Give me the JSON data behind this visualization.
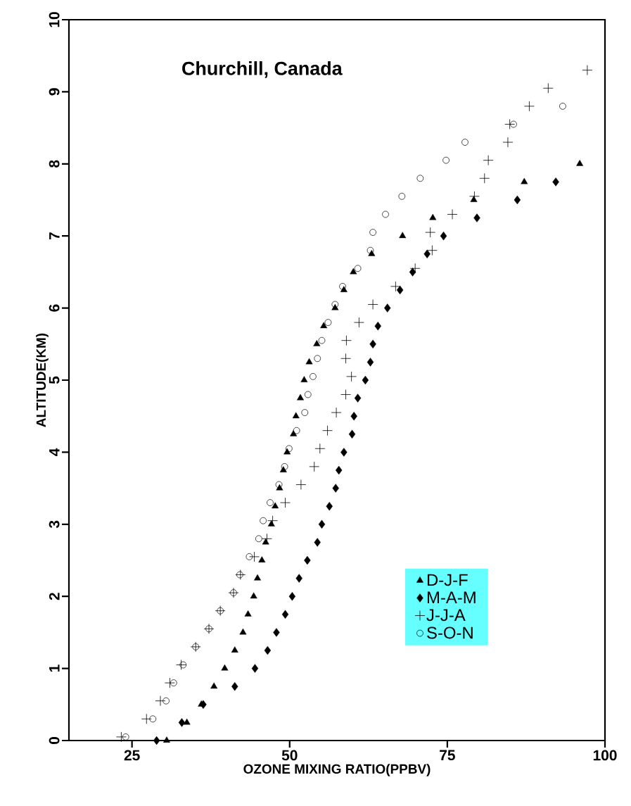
{
  "chart_data": {
    "type": "scatter",
    "title": "Churchill, Canada",
    "xlabel": "OZONE MIXING RATIO(PPBV)",
    "ylabel": "ALTITUDE(KM)",
    "xlim": [
      15,
      100
    ],
    "ylim": [
      0,
      10
    ],
    "xticks": [
      25,
      50,
      75,
      100
    ],
    "yticks": [
      0,
      1,
      2,
      3,
      4,
      5,
      6,
      7,
      8,
      9,
      10
    ],
    "grid": false,
    "legend": "bottom right",
    "series": [
      {
        "name": "D-J-F",
        "color": "#000000",
        "marker": "triangle",
        "x": [
          30.5,
          33.7,
          36.0,
          38.0,
          39.7,
          41.3,
          42.6,
          43.4,
          44.3,
          44.9,
          45.6,
          46.2,
          47.1,
          47.7,
          48.4,
          49.0,
          49.6,
          50.6,
          51.0,
          51.7,
          52.3,
          53.1,
          54.3,
          55.4,
          57.2,
          58.6,
          60.1,
          63.0,
          67.9,
          72.7,
          79.2,
          87.2,
          96.0
        ],
        "values": [
          0,
          0.25,
          0.5,
          0.75,
          1.0,
          1.25,
          1.5,
          1.75,
          2.0,
          2.25,
          2.5,
          2.75,
          3.0,
          3.25,
          3.5,
          3.75,
          4.0,
          4.25,
          4.5,
          4.75,
          5.0,
          5.25,
          5.5,
          5.75,
          6.0,
          6.25,
          6.5,
          6.75,
          7.0,
          7.25,
          7.5,
          7.75,
          8.0
        ]
      },
      {
        "name": "M-A-M",
        "color": "#000000",
        "marker": "diamond",
        "x": [
          28.9,
          32.9,
          36.3,
          41.3,
          44.5,
          46.5,
          47.9,
          49.3,
          50.4,
          51.5,
          52.8,
          54.4,
          55.1,
          56.3,
          57.3,
          57.8,
          58.6,
          59.9,
          60.2,
          60.8,
          62.0,
          62.8,
          63.2,
          64.0,
          65.5,
          67.5,
          69.5,
          71.8,
          74.4,
          79.7,
          86.1,
          92.2
        ],
        "values": [
          0,
          0.25,
          0.5,
          0.75,
          1.0,
          1.25,
          1.5,
          1.75,
          2.0,
          2.25,
          2.5,
          2.75,
          3.0,
          3.25,
          3.5,
          3.75,
          4.0,
          4.25,
          4.5,
          4.75,
          5.0,
          5.25,
          5.5,
          5.75,
          6.0,
          6.25,
          6.5,
          6.75,
          7.0,
          7.25,
          7.5,
          7.75
        ]
      },
      {
        "name": "J-J-A",
        "color": "#000000",
        "marker": "cross",
        "x": [
          23.3,
          27.3,
          29.5,
          31.0,
          32.8,
          35.1,
          37.2,
          39.0,
          41.1,
          42.2,
          44.4,
          46.4,
          47.3,
          49.3,
          51.8,
          53.9,
          54.8,
          56.0,
          57.4,
          58.9,
          59.8,
          58.9,
          59.0,
          61.0,
          63.2,
          66.8,
          69.9,
          72.6,
          72.3,
          75.8,
          79.3,
          80.9,
          81.5,
          84.6,
          84.9,
          88.0,
          91.0,
          97.2
        ],
        "values": [
          0.05,
          0.3,
          0.55,
          0.8,
          1.05,
          1.3,
          1.55,
          1.8,
          2.05,
          2.3,
          2.55,
          2.8,
          3.05,
          3.3,
          3.55,
          3.8,
          4.05,
          4.3,
          4.55,
          4.8,
          5.05,
          5.3,
          5.55,
          5.8,
          6.05,
          6.3,
          6.55,
          6.8,
          7.05,
          7.3,
          7.55,
          7.8,
          8.05,
          8.3,
          8.55,
          8.8,
          9.05,
          9.3
        ]
      },
      {
        "name": "S-O-N",
        "color": "#000000",
        "marker": "circle",
        "x": [
          24.0,
          28.3,
          30.4,
          31.6,
          33.1,
          35.1,
          37.2,
          39.0,
          41.1,
          42.1,
          43.6,
          45.1,
          45.8,
          46.9,
          48.3,
          49.2,
          49.9,
          51.1,
          52.4,
          52.9,
          53.7,
          54.4,
          55.1,
          56.1,
          57.2,
          58.4,
          60.8,
          62.8,
          63.2,
          65.2,
          67.8,
          70.7,
          74.8,
          77.8,
          85.5,
          93.3
        ],
        "values": [
          0.05,
          0.3,
          0.55,
          0.8,
          1.05,
          1.3,
          1.55,
          1.8,
          2.05,
          2.3,
          2.55,
          2.8,
          3.05,
          3.3,
          3.55,
          3.8,
          4.05,
          4.3,
          4.55,
          4.8,
          5.05,
          5.3,
          5.55,
          5.8,
          6.05,
          6.3,
          6.55,
          6.8,
          7.05,
          7.3,
          7.55,
          7.8,
          8.05,
          8.3,
          8.55,
          8.8
        ]
      }
    ]
  }
}
